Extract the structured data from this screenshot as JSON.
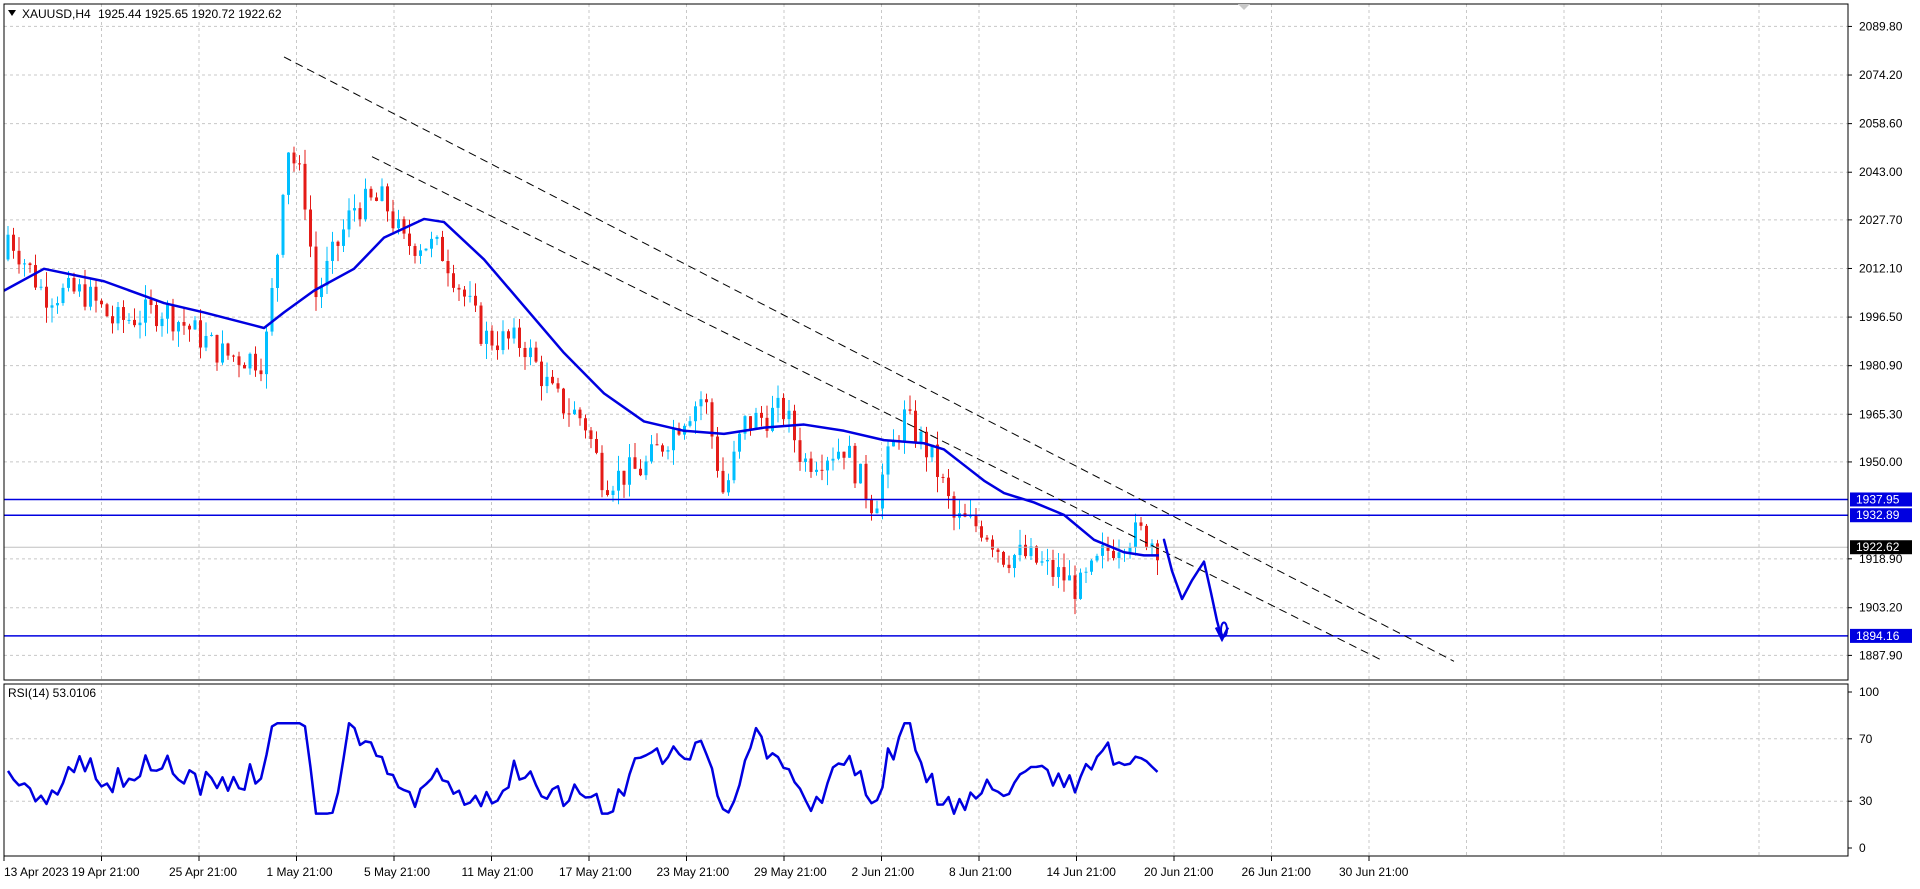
{
  "chart_data": {
    "type": "candlestick",
    "header": {
      "symbol": "XAUUSD,H4",
      "ohlc": "1925.44 1925.65 1920.72 1922.62"
    },
    "price_axis": {
      "ylim": [
        1880.0,
        2097.0
      ],
      "ticks": [
        "2089.80",
        "2074.20",
        "2058.60",
        "2043.00",
        "2027.70",
        "2012.10",
        "1996.50",
        "1980.90",
        "1965.30",
        "1950.00",
        "1918.90",
        "1903.20",
        "1887.90"
      ]
    },
    "time_axis": {
      "labels": [
        "13 Apr 2023",
        "19 Apr 21:00",
        "25 Apr 21:00",
        "1 May 21:00",
        "5 May 21:00",
        "11 May 21:00",
        "17 May 21:00",
        "23 May 21:00",
        "29 May 21:00",
        "2 Jun 21:00",
        "8 Jun 21:00",
        "14 Jun 21:00",
        "20 Jun 21:00",
        "26 Jun 21:00",
        "30 Jun 21:00"
      ]
    },
    "current_price": "1922.62",
    "horizontal_levels": [
      {
        "value": 1937.95,
        "label": "1937.95"
      },
      {
        "value": 1932.89,
        "label": "1932.89"
      },
      {
        "value": 1894.16,
        "label": "1894.16"
      }
    ],
    "moving_average": {
      "points": [
        [
          0,
          2005
        ],
        [
          40,
          2012
        ],
        [
          100,
          2008
        ],
        [
          160,
          2001
        ],
        [
          200,
          1998
        ],
        [
          260,
          1993
        ],
        [
          280,
          1998
        ],
        [
          310,
          2005
        ],
        [
          350,
          2012
        ],
        [
          380,
          2022
        ],
        [
          420,
          2028
        ],
        [
          440,
          2027
        ],
        [
          480,
          2015
        ],
        [
          520,
          2000
        ],
        [
          560,
          1985
        ],
        [
          600,
          1972
        ],
        [
          640,
          1963
        ],
        [
          680,
          1960
        ],
        [
          720,
          1959
        ],
        [
          760,
          1961
        ],
        [
          800,
          1962
        ],
        [
          840,
          1960
        ],
        [
          880,
          1957
        ],
        [
          920,
          1956
        ],
        [
          940,
          1954
        ],
        [
          960,
          1949
        ],
        [
          980,
          1944
        ],
        [
          1000,
          1940
        ],
        [
          1030,
          1937
        ],
        [
          1060,
          1933
        ],
        [
          1090,
          1925
        ],
        [
          1120,
          1921
        ],
        [
          1140,
          1920
        ],
        [
          1155,
          1920
        ]
      ]
    },
    "trendlines": [
      {
        "x1": 280,
        "y1": 2080,
        "x2": 1450,
        "y2": 1886
      },
      {
        "x1": 368,
        "y1": 2048,
        "x2": 1380,
        "y2": 1886
      }
    ],
    "projection": {
      "points": [
        [
          1160,
          1925
        ],
        [
          1168,
          1915
        ],
        [
          1178,
          1906
        ],
        [
          1188,
          1912
        ],
        [
          1200,
          1918
        ],
        [
          1207,
          1908
        ],
        [
          1213,
          1899
        ],
        [
          1218,
          1893
        ]
      ]
    },
    "rsi": {
      "label": "RSI(14) 53.0106",
      "ylim": [
        0,
        100
      ],
      "ticks": [
        "100",
        "70",
        "30",
        "0"
      ]
    }
  }
}
